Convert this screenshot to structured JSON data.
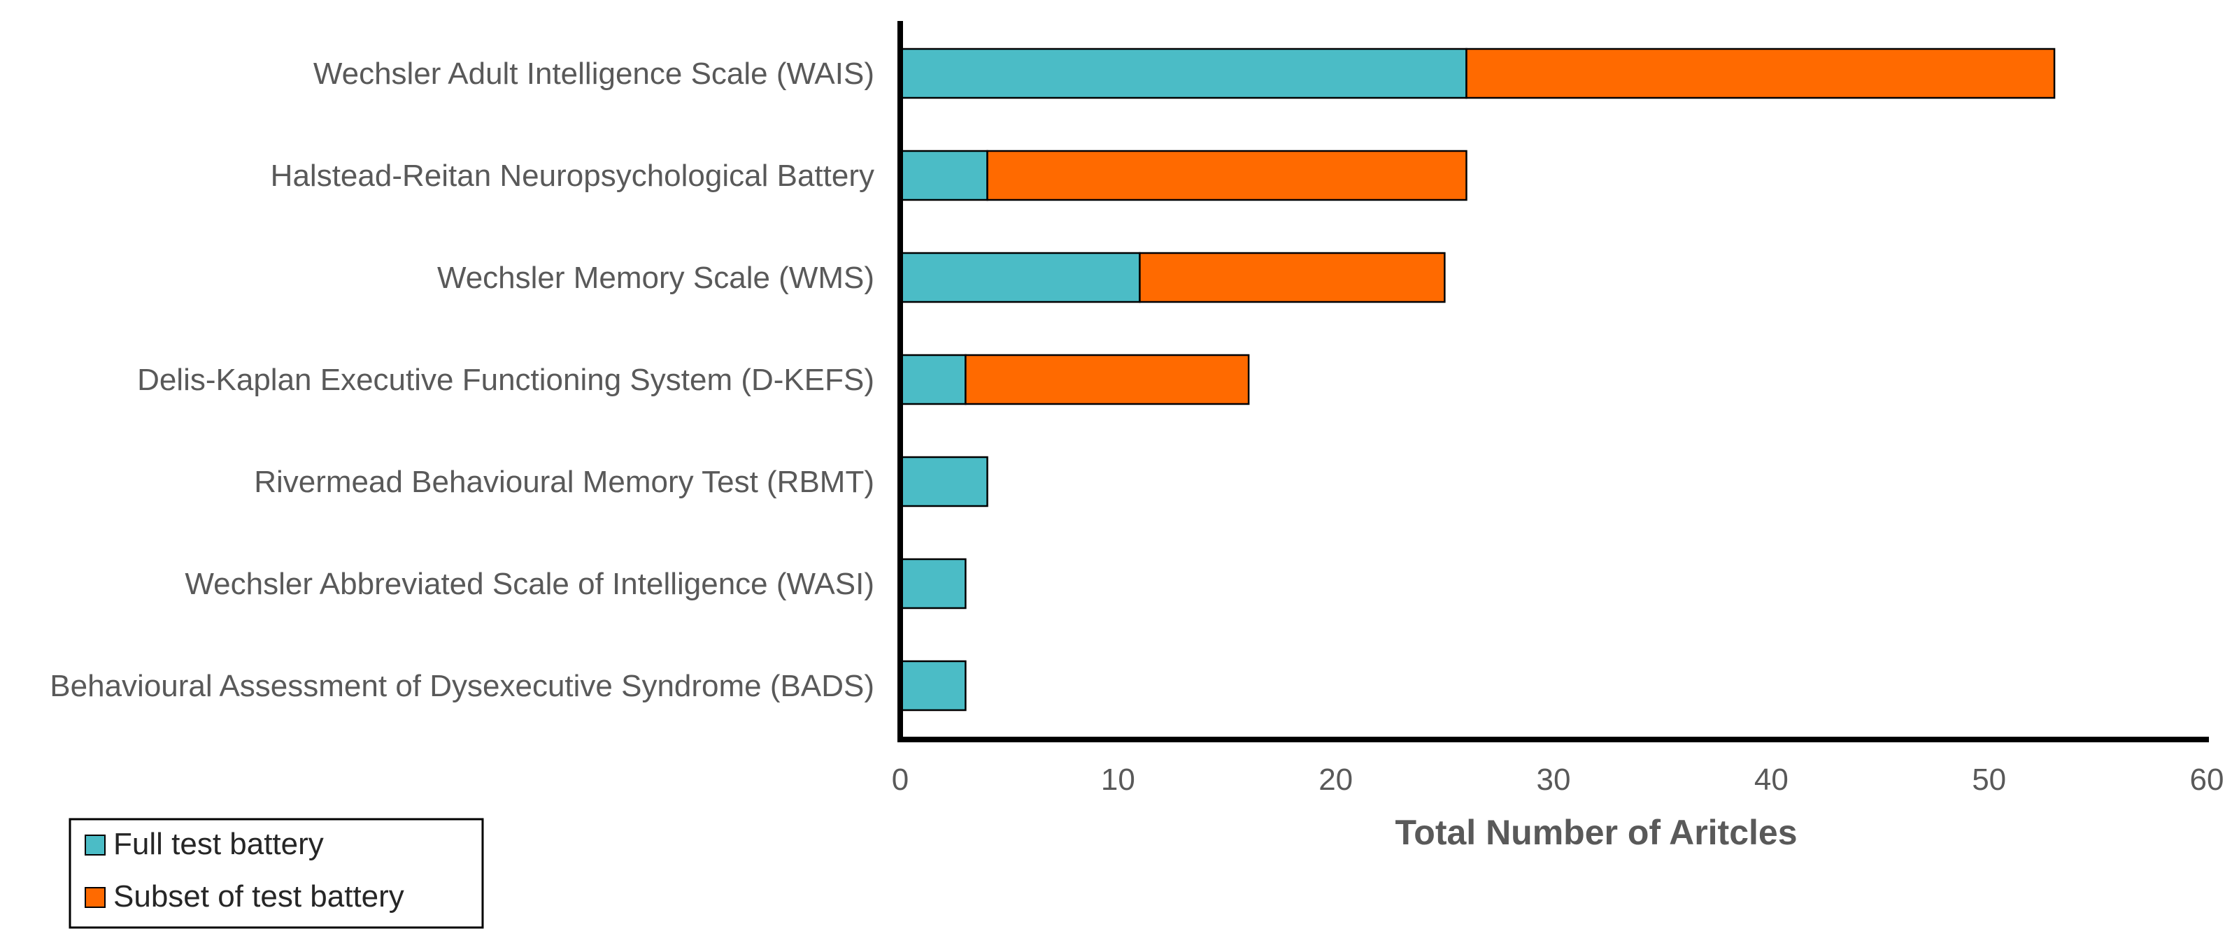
{
  "chart_data": {
    "type": "bar",
    "orientation": "horizontal",
    "stacked": true,
    "title": "",
    "xlabel": "Total Number of Aritcles",
    "ylabel": "",
    "xlim": [
      0,
      60
    ],
    "xticks": [
      0,
      10,
      20,
      30,
      40,
      50,
      60
    ],
    "grid": false,
    "legend_position": "bottom-left",
    "categories": [
      "Wechsler Adult Intelligence Scale (WAIS)",
      "Halstead-Reitan Neuropsychological Battery",
      "Wechsler Memory Scale (WMS)",
      "Delis-Kaplan Executive Functioning System (D-KEFS)",
      "Rivermead Behavioural Memory Test (RBMT)",
      "Wechsler Abbreviated Scale of Intelligence (WASI)",
      "Behavioural Assessment of Dysexecutive Syndrome (BADS)"
    ],
    "series": [
      {
        "name": "Full test battery",
        "color": "#4BBCC6",
        "values": [
          26,
          4,
          11,
          3,
          4,
          3,
          3
        ]
      },
      {
        "name": "Subset of test battery",
        "color": "#FF6A00",
        "values": [
          27,
          22,
          14,
          13,
          0,
          0,
          0
        ]
      }
    ]
  }
}
